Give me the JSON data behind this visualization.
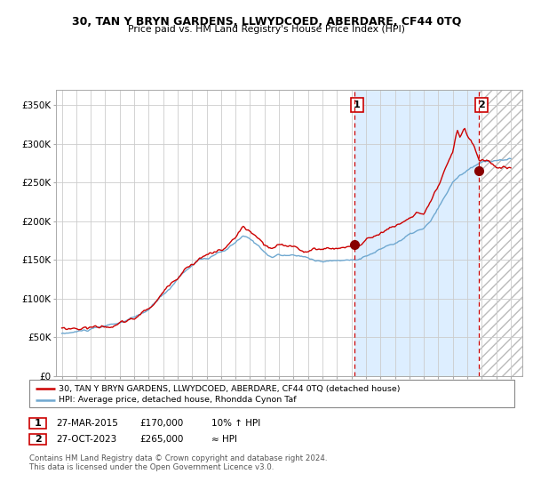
{
  "title": "30, TAN Y BRYN GARDENS, LLWYDCOED, ABERDARE, CF44 0TQ",
  "subtitle": "Price paid vs. HM Land Registry's House Price Index (HPI)",
  "hpi_label": "HPI: Average price, detached house, Rhondda Cynon Taf",
  "price_label": "30, TAN Y BRYN GARDENS, LLWYDCOED, ABERDARE, CF44 0TQ (detached house)",
  "annotation1_date": "27-MAR-2015",
  "annotation1_price": 170000,
  "annotation1_pct": "10% ↑ HPI",
  "annotation2_date": "27-OCT-2023",
  "annotation2_price": 265000,
  "annotation2_pct": "≈ HPI",
  "vline1_year": 2015.23,
  "vline2_year": 2023.82,
  "dot1_year": 2015.23,
  "dot1_value": 170000,
  "dot2_year": 2023.82,
  "dot2_value": 265000,
  "hpi_color": "#6fa8d0",
  "price_color": "#cc0000",
  "dot_color": "#880000",
  "vline_color": "#cc0000",
  "bg_shaded_color": "#ddeeff",
  "grid_color": "#cccccc",
  "footer": "Contains HM Land Registry data © Crown copyright and database right 2024.\nThis data is licensed under the Open Government Licence v3.0.",
  "ylim": [
    0,
    370000
  ],
  "xlim_start": 1994.6,
  "xlim_end": 2026.8
}
